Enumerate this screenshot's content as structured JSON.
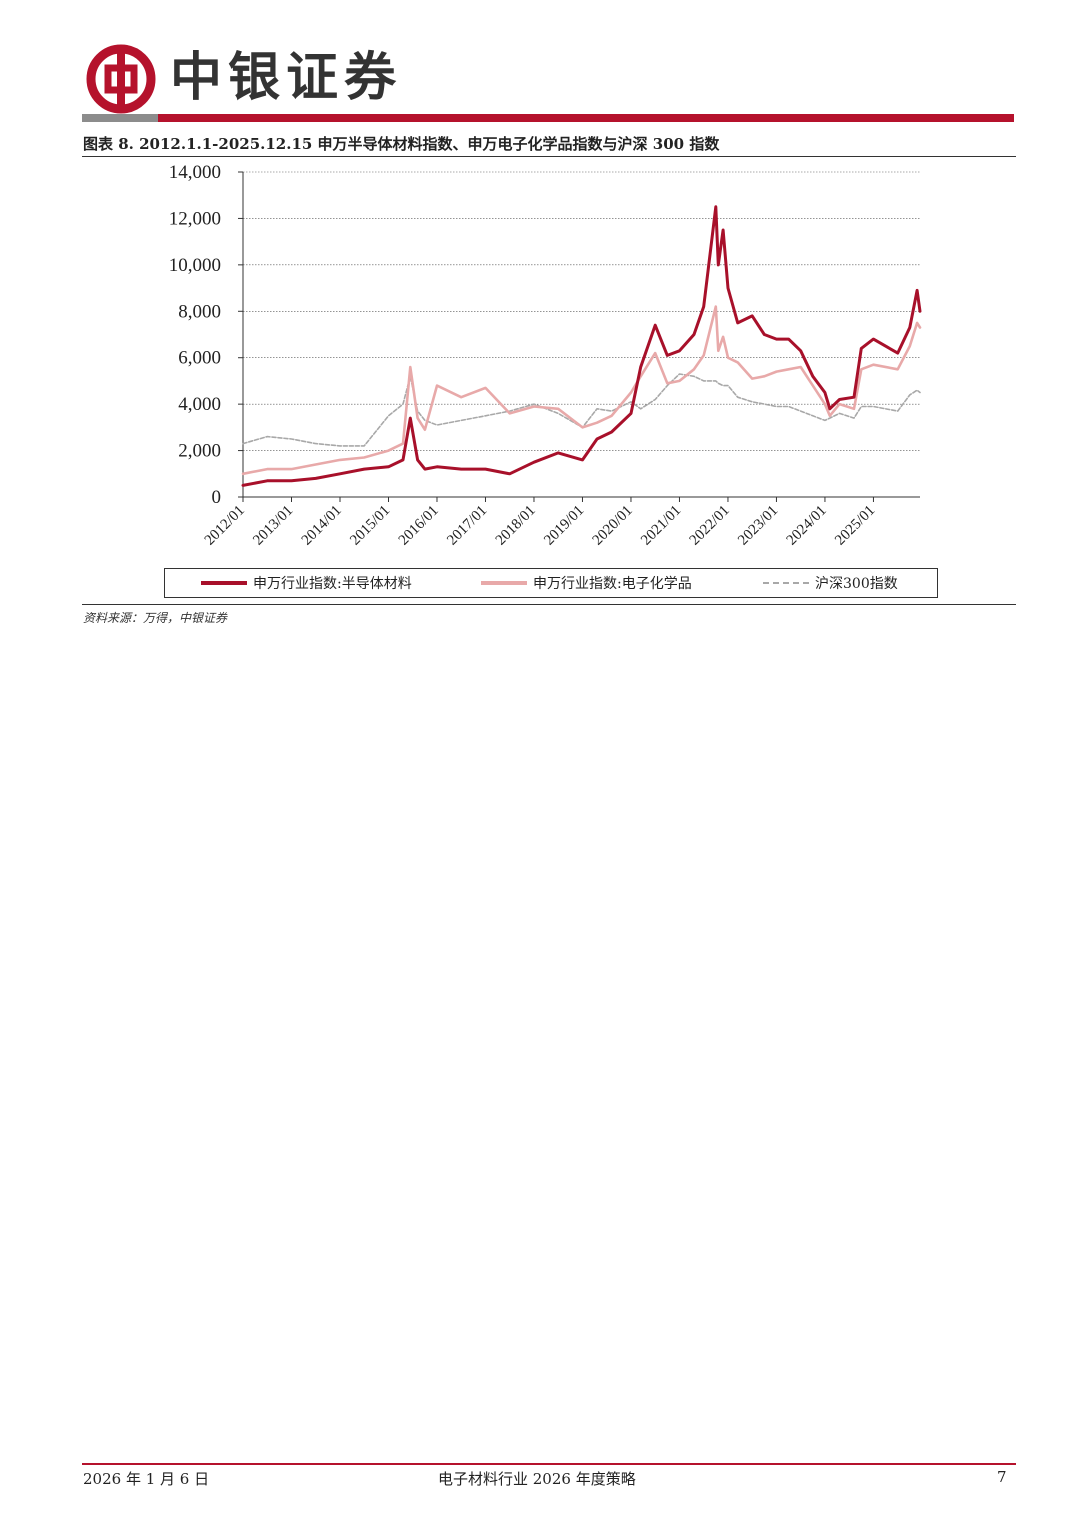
{
  "header": {
    "brand": "中银证券",
    "logo_icon": "bank-of-china-logo-icon",
    "brand_color": "#b5122c"
  },
  "figure": {
    "title": "图表 8. 2012.1.1-2025.12.15 申万半导体材料指数、申万电子化学品指数与沪深 300 指数",
    "source": "资料来源：万得，中银证券"
  },
  "chart_data": {
    "type": "line",
    "title": "",
    "xlabel": "",
    "ylabel": "",
    "x_tick_labels": [
      "2012/01",
      "2013/01",
      "2014/01",
      "2015/01",
      "2016/01",
      "2017/01",
      "2018/01",
      "2019/01",
      "2020/01",
      "2021/01",
      "2022/01",
      "2023/01",
      "2024/01",
      "2025/01"
    ],
    "y_tick_labels": [
      "0",
      "2,000",
      "4,000",
      "6,000",
      "8,000",
      "10,000",
      "12,000",
      "14,000"
    ],
    "ylim": [
      0,
      14000
    ],
    "grid": "horizontal",
    "legend_position": "bottom",
    "x": [
      2012.0,
      2012.5,
      2013.0,
      2013.5,
      2014.0,
      2014.5,
      2015.0,
      2015.3,
      2015.45,
      2015.6,
      2015.75,
      2016.0,
      2016.5,
      2017.0,
      2017.5,
      2018.0,
      2018.5,
      2019.0,
      2019.3,
      2019.6,
      2020.0,
      2020.2,
      2020.5,
      2020.75,
      2021.0,
      2021.3,
      2021.5,
      2021.75,
      2021.8,
      2021.9,
      2022.0,
      2022.2,
      2022.5,
      2022.75,
      2023.0,
      2023.25,
      2023.5,
      2023.75,
      2024.0,
      2024.1,
      2024.3,
      2024.6,
      2024.75,
      2025.0,
      2025.5,
      2025.75,
      2025.9,
      2025.96
    ],
    "series": [
      {
        "name": "申万行业指数:半导体材料",
        "color": "#a8102a",
        "style": "solid",
        "values": [
          500,
          700,
          700,
          800,
          1000,
          1200,
          1300,
          1600,
          3400,
          1600,
          1200,
          1300,
          1200,
          1200,
          1000,
          1500,
          1900,
          1600,
          2500,
          2800,
          3600,
          5600,
          7400,
          6100,
          6300,
          7000,
          8200,
          12500,
          10000,
          11500,
          9000,
          7500,
          7800,
          7000,
          6800,
          6800,
          6300,
          5200,
          4500,
          3800,
          4200,
          4300,
          6400,
          6800,
          6200,
          7300,
          8900,
          8000
        ]
      },
      {
        "name": "申万行业指数:电子化学品",
        "color": "#e8a9a9",
        "style": "solid",
        "values": [
          1000,
          1200,
          1200,
          1400,
          1600,
          1700,
          2000,
          2300,
          5600,
          3400,
          2900,
          4800,
          4300,
          4700,
          3600,
          3900,
          3800,
          3000,
          3200,
          3500,
          4500,
          5200,
          6200,
          4900,
          5000,
          5500,
          6100,
          8200,
          6300,
          6900,
          6000,
          5800,
          5100,
          5200,
          5400,
          5500,
          5600,
          4800,
          4000,
          3500,
          4000,
          3800,
          5500,
          5700,
          5500,
          6500,
          7500,
          7300
        ]
      },
      {
        "name": "沪深300指数",
        "color": "#a8a8a8",
        "style": "dashed",
        "values": [
          2300,
          2600,
          2500,
          2300,
          2200,
          2200,
          3500,
          4000,
          5200,
          3700,
          3300,
          3100,
          3300,
          3500,
          3700,
          4000,
          3600,
          3000,
          3800,
          3700,
          4100,
          3800,
          4200,
          4800,
          5300,
          5200,
          5000,
          5000,
          4900,
          4800,
          4800,
          4300,
          4100,
          4000,
          3900,
          3900,
          3700,
          3500,
          3300,
          3400,
          3600,
          3400,
          3900,
          3900,
          3700,
          4400,
          4600,
          4500
        ]
      }
    ]
  },
  "footer": {
    "date": "2026 年 1 月 6 日",
    "report_title": "电子材料行业 2026 年度策略",
    "page_number": "7"
  }
}
